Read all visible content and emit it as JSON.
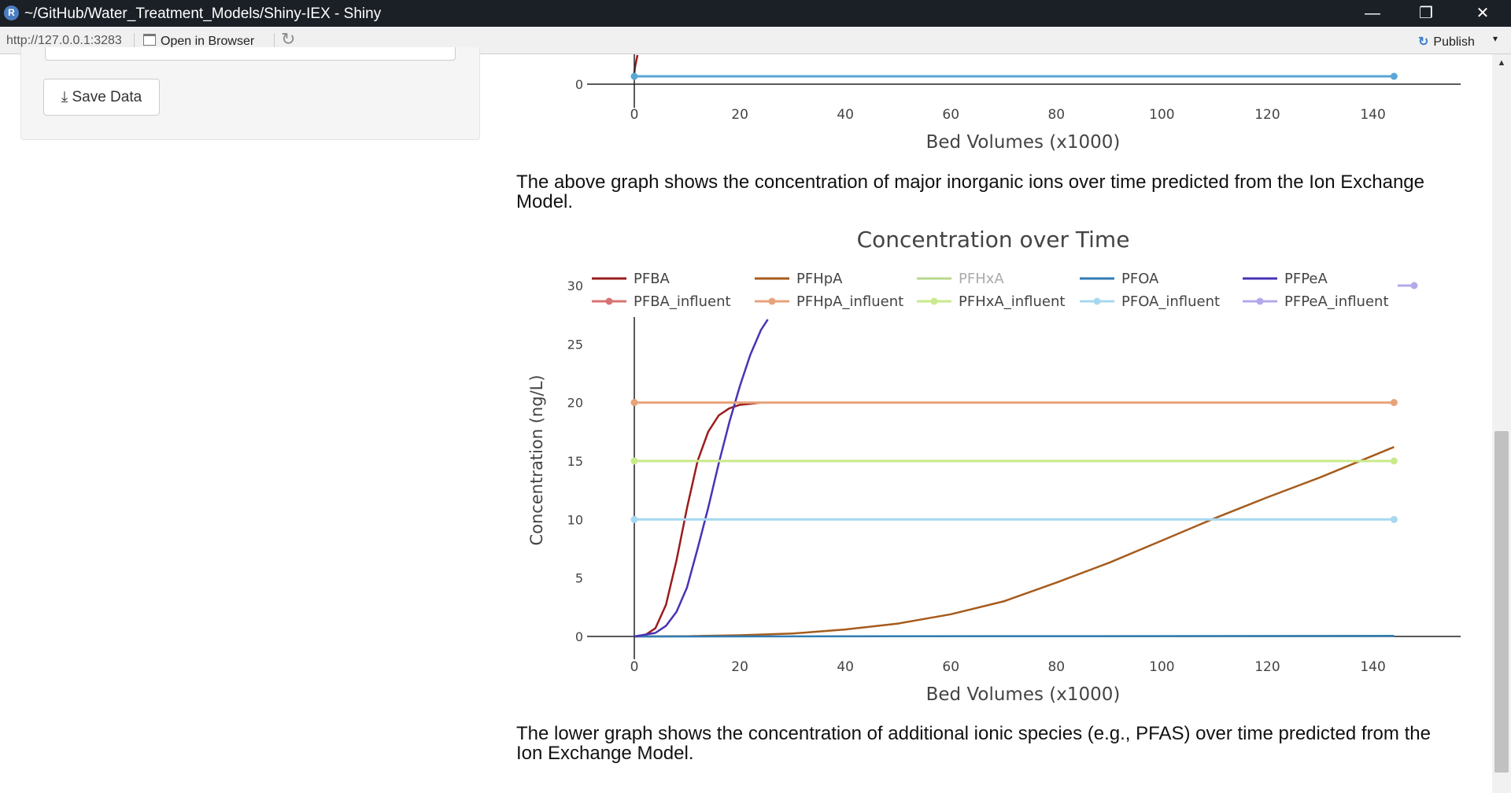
{
  "window": {
    "logo_letter": "R",
    "title": "~/GitHub/Water_Treatment_Models/Shiny-IEX - Shiny",
    "controls": {
      "minimize": "—",
      "restore": "❐",
      "close": "✕"
    }
  },
  "toolbar": {
    "url": "http://127.0.0.1:3283",
    "open_in_browser": "Open in Browser",
    "publish": "Publish",
    "publish_icon": "↻",
    "publish_caret": "▾",
    "refresh_icon": "↻"
  },
  "sidebar": {
    "save_icon": "⤓",
    "save_label": "Save Data"
  },
  "captions": {
    "upper": "The above graph shows the concentration of major inorganic ions over time predicted from the Ion Exchange Model.",
    "lower": "The lower graph shows the concentration of additional ionic species (e.g., PFAS) over time predicted from the Ion Exchange Model."
  },
  "scrollbar": {
    "up": "▲"
  },
  "colors": {
    "text": "#444444",
    "axis": "#222222"
  },
  "chart_data": [
    {
      "type": "line",
      "title": "",
      "xlabel": "Bed Volumes (x1000)",
      "x_ticks": [
        0,
        20,
        40,
        60,
        80,
        100,
        120,
        140
      ],
      "y_ticks": [
        0
      ],
      "series": [
        {
          "color": "#5aa6d6",
          "markers": true,
          "x": [
            0,
            144
          ],
          "y": [
            0.5,
            0.5
          ]
        }
      ]
    },
    {
      "type": "line",
      "title": "Concentration over Time",
      "xlabel": "Bed Volumes (x1000)",
      "ylabel": "Concentration (ng/L)",
      "xlim": [
        0,
        153
      ],
      "ylim": [
        0,
        31
      ],
      "x_ticks": [
        0,
        20,
        40,
        60,
        80,
        100,
        120,
        140
      ],
      "y_ticks": [
        0,
        5,
        10,
        15,
        20,
        25,
        30
      ],
      "legend_position": "top",
      "series": [
        {
          "name": "PFBA",
          "color": "#9b1c1c",
          "x": [
            0,
            2,
            4,
            6,
            8,
            10,
            12,
            14,
            16,
            18,
            20,
            22,
            24,
            26,
            28,
            144
          ],
          "y": [
            0,
            0.1,
            0.7,
            2.7,
            6.5,
            11,
            15,
            17.5,
            18.9,
            19.5,
            19.8,
            19.9,
            20,
            20,
            20,
            20
          ]
        },
        {
          "name": "PFHpA",
          "color": "#a65b1c",
          "x": [
            0,
            10,
            20,
            30,
            40,
            50,
            60,
            70,
            80,
            90,
            100,
            110,
            120,
            130,
            144
          ],
          "y": [
            0,
            0.02,
            0.1,
            0.25,
            0.6,
            1.1,
            1.9,
            3.0,
            4.6,
            6.3,
            8.2,
            10.1,
            11.9,
            13.6,
            16.2
          ]
        },
        {
          "name": "PFHxA",
          "color": "#b8d88c",
          "legend_faded": true,
          "x": [],
          "y": []
        },
        {
          "name": "PFOA",
          "color": "#2f7bb4",
          "x": [
            0,
            144
          ],
          "y": [
            0,
            0.05
          ]
        },
        {
          "name": "PFPeA",
          "color": "#4933b5",
          "x": [
            0,
            4,
            6,
            8,
            10,
            12,
            14,
            16,
            18,
            20,
            22,
            24,
            25.3
          ],
          "y": [
            0,
            0.3,
            0.9,
            2.1,
            4.2,
            7.5,
            11,
            14.8,
            18.3,
            21.4,
            24.1,
            26.2,
            27.1
          ]
        },
        {
          "name": "PFBA_influent",
          "color": "#d87373",
          "markers": true,
          "x": [],
          "y": []
        },
        {
          "name": "PFHpA_influent",
          "color": "#e8a27a",
          "markers": true,
          "x": [
            0,
            144
          ],
          "y": [
            20,
            20
          ]
        },
        {
          "name": "PFHxA_influent",
          "color": "#c9ea8a",
          "markers": true,
          "x": [
            0,
            144
          ],
          "y": [
            15,
            15
          ]
        },
        {
          "name": "PFOA_influent",
          "color": "#a6d8f0",
          "markers": true,
          "x": [
            0,
            144
          ],
          "y": [
            10,
            10
          ]
        },
        {
          "name": "PFPeA_influent",
          "color": "#b5a8ea",
          "markers": true,
          "x": [],
          "y": []
        }
      ]
    }
  ]
}
